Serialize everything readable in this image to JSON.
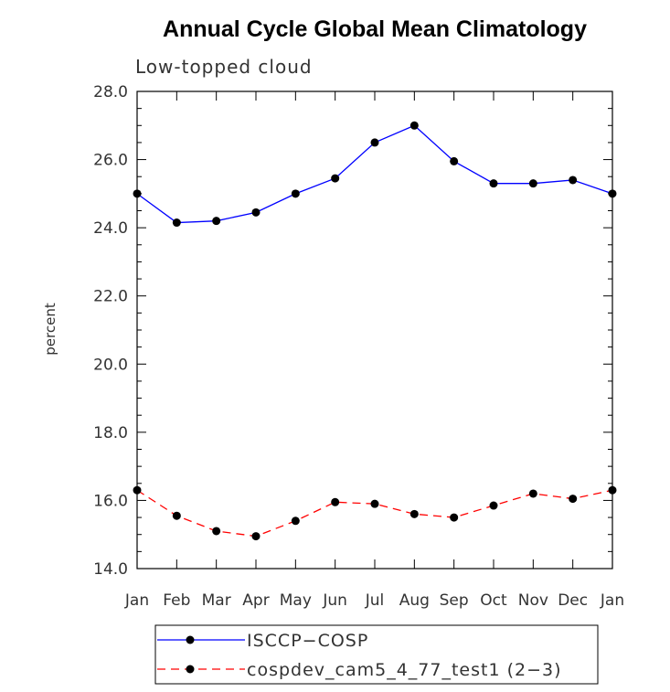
{
  "chart_data": {
    "type": "line",
    "title": "Annual Cycle Global Mean Climatology",
    "subtitle": "Low-topped cloud",
    "ylabel": "percent",
    "xlabel": "",
    "ylim": [
      14.0,
      28.0
    ],
    "yticks": [
      "14.0",
      "16.0",
      "18.0",
      "20.0",
      "22.0",
      "24.0",
      "26.0",
      "28.0"
    ],
    "categories": [
      "Jan",
      "Feb",
      "Mar",
      "Apr",
      "May",
      "Jun",
      "Jul",
      "Aug",
      "Sep",
      "Oct",
      "Nov",
      "Dec",
      "Jan"
    ],
    "legend_position": "bottom",
    "series": [
      {
        "name": "ISCCP−COSP",
        "color": "#0000ff",
        "dash": "solid",
        "values": [
          25.0,
          24.15,
          24.2,
          24.45,
          25.0,
          25.45,
          26.5,
          27.0,
          25.95,
          25.3,
          25.3,
          25.4,
          25.0
        ]
      },
      {
        "name": "cospdev_cam5_4_77_test1 (2−3)",
        "color": "#ff0000",
        "dash": "dashed",
        "values": [
          16.3,
          15.55,
          15.1,
          14.95,
          15.4,
          15.95,
          15.9,
          15.6,
          15.5,
          15.85,
          16.2,
          16.05,
          16.3
        ]
      }
    ]
  }
}
